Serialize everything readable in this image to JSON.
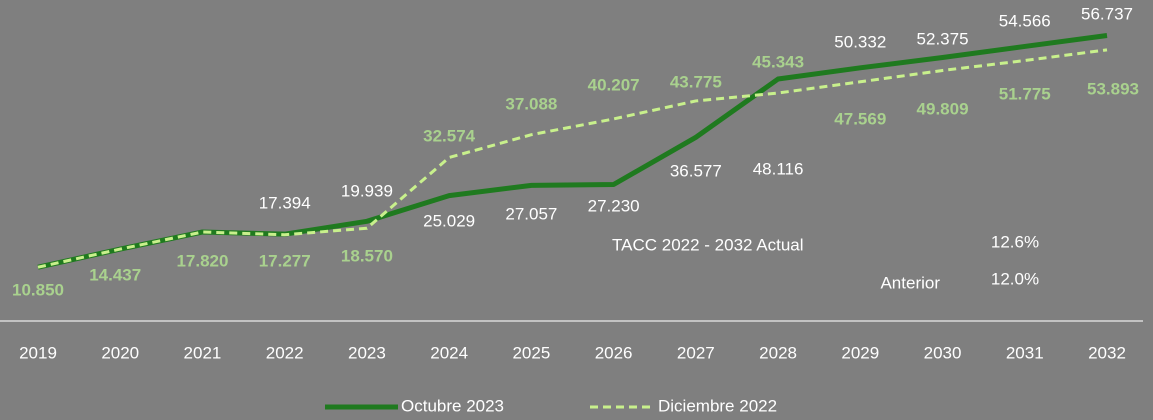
{
  "chart_data": {
    "type": "line",
    "categories": [
      "2019",
      "2020",
      "2021",
      "2022",
      "2023",
      "2024",
      "2025",
      "2026",
      "2027",
      "2028",
      "2029",
      "2030",
      "2031",
      "2032"
    ],
    "series": [
      {
        "name": "Octubre 2023",
        "color": "#1f7a1f",
        "dash": false,
        "label_color": "#ffffff",
        "values": [
          10.85,
          14.437,
          17.82,
          17.394,
          19.939,
          25.029,
          27.057,
          27.23,
          36.577,
          48.116,
          50.332,
          52.375,
          54.566,
          56.737
        ],
        "value_labels": [
          null,
          null,
          null,
          "17.394",
          "19.939",
          "25.029",
          "27.057",
          "27.230",
          "36.577",
          "48.116",
          "50.332",
          "52.375",
          "54.566",
          "56.737"
        ]
      },
      {
        "name": "Diciembre 2022",
        "color": "#c8f08c",
        "dash": true,
        "label_color": "#a9d18e",
        "values": [
          10.85,
          14.437,
          17.82,
          17.277,
          18.57,
          32.574,
          37.088,
          40.207,
          43.775,
          45.343,
          47.569,
          49.809,
          51.775,
          53.893
        ],
        "value_labels": [
          "10.850",
          "14.437",
          "17.820",
          "17.277",
          "18.570",
          "32.574",
          "37.088",
          "40.207",
          "43.775",
          "45.343",
          "47.569",
          "49.809",
          "51.775",
          "53.893"
        ]
      }
    ],
    "ylim": [
      0,
      60
    ],
    "grid": false,
    "legend": "bottom",
    "annotations": {
      "actual_label": "TACC 2022 - 2032 Actual",
      "actual_value": "12.6%",
      "previous_label": "Anterior",
      "previous_value": "12.0%"
    }
  }
}
